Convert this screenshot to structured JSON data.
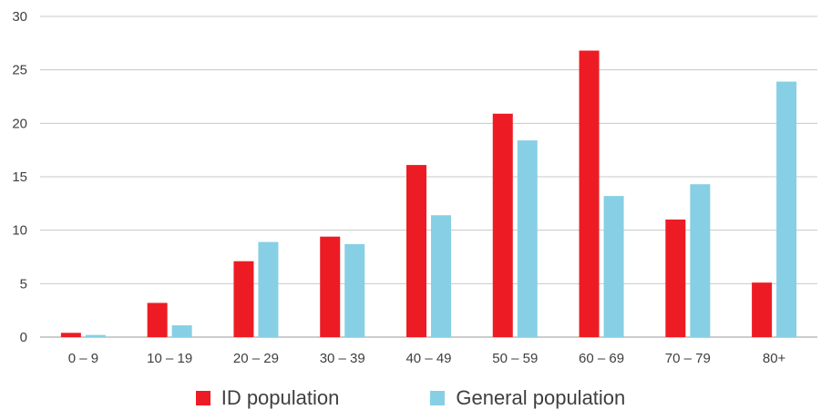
{
  "chart_data": {
    "type": "bar",
    "categories": [
      "0 – 9",
      "10 – 19",
      "20 – 29",
      "30 – 39",
      "40 – 49",
      "50 – 59",
      "60 – 69",
      "70 – 79",
      "80+"
    ],
    "series": [
      {
        "name": "ID population",
        "color": "#ED1C24",
        "values": [
          0.4,
          3.2,
          7.1,
          9.4,
          16.1,
          20.9,
          26.8,
          11.0,
          5.1
        ]
      },
      {
        "name": "General population",
        "color": "#87CFE4",
        "values": [
          0.2,
          1.1,
          8.9,
          8.7,
          11.4,
          18.4,
          13.2,
          14.3,
          23.9
        ]
      }
    ],
    "ylim": [
      0,
      30
    ],
    "yticks": [
      0,
      5,
      10,
      15,
      20,
      25,
      30
    ],
    "legend_position": "bottom",
    "grid": true
  }
}
